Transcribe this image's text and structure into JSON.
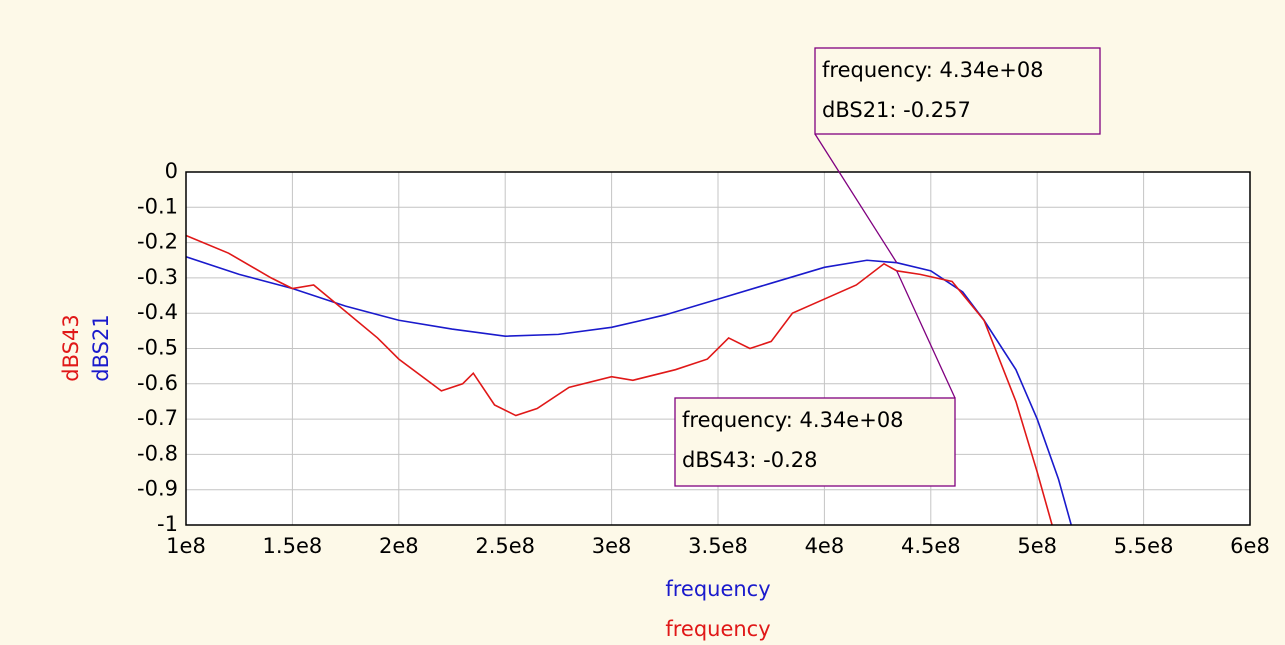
{
  "chart_data": {
    "type": "line",
    "xlim": [
      100000000,
      600000000
    ],
    "xticks": [
      {
        "value": 100000000,
        "label": "1e8"
      },
      {
        "value": 150000000,
        "label": "1.5e8"
      },
      {
        "value": 200000000,
        "label": "2e8"
      },
      {
        "value": 250000000,
        "label": "2.5e8"
      },
      {
        "value": 300000000,
        "label": "3e8"
      },
      {
        "value": 350000000,
        "label": "3.5e8"
      },
      {
        "value": 400000000,
        "label": "4e8"
      },
      {
        "value": 450000000,
        "label": "4.5e8"
      },
      {
        "value": 500000000,
        "label": "5e8"
      },
      {
        "value": 550000000,
        "label": "5.5e8"
      },
      {
        "value": 600000000,
        "label": "6e8"
      }
    ],
    "ylim": [
      -1,
      0
    ],
    "yticks": [
      0,
      -0.1,
      -0.2,
      -0.3,
      -0.4,
      -0.5,
      -0.6,
      -0.7,
      -0.8,
      -0.9,
      -1
    ],
    "grid": true,
    "series": [
      {
        "name": "dBS21",
        "color": "#1a1acc",
        "x_label": "frequency",
        "x": [
          100000000,
          125000000,
          150000000,
          175000000,
          200000000,
          225000000,
          250000000,
          275000000,
          300000000,
          325000000,
          350000000,
          375000000,
          400000000,
          420000000,
          434000000,
          450000000,
          465000000,
          475000000,
          490000000,
          500000000,
          510000000,
          516000000
        ],
        "values": [
          -0.24,
          -0.29,
          -0.33,
          -0.38,
          -0.42,
          -0.445,
          -0.465,
          -0.46,
          -0.44,
          -0.405,
          -0.36,
          -0.315,
          -0.27,
          -0.25,
          -0.257,
          -0.28,
          -0.34,
          -0.42,
          -0.56,
          -0.7,
          -0.87,
          -1.0
        ]
      },
      {
        "name": "dBS43",
        "color": "#e01818",
        "x_label": "frequency",
        "x": [
          100000000,
          120000000,
          140000000,
          150000000,
          160000000,
          170000000,
          190000000,
          200000000,
          220000000,
          230000000,
          235000000,
          245000000,
          255000000,
          265000000,
          280000000,
          300000000,
          310000000,
          330000000,
          345000000,
          355000000,
          365000000,
          375000000,
          385000000,
          400000000,
          415000000,
          428000000,
          434000000,
          445000000,
          460000000,
          475000000,
          490000000,
          500000000,
          507000000
        ],
        "values": [
          -0.18,
          -0.23,
          -0.3,
          -0.33,
          -0.32,
          -0.37,
          -0.47,
          -0.53,
          -0.62,
          -0.6,
          -0.57,
          -0.66,
          -0.69,
          -0.67,
          -0.61,
          -0.58,
          -0.59,
          -0.56,
          -0.53,
          -0.47,
          -0.5,
          -0.48,
          -0.4,
          -0.36,
          -0.32,
          -0.26,
          -0.28,
          -0.29,
          -0.31,
          -0.42,
          -0.65,
          -0.85,
          -1.0
        ]
      }
    ],
    "markers": [
      {
        "x": 434000000,
        "y": -0.257,
        "lines": [
          "frequency: 4.34e+08",
          "dBS21: -0.257"
        ]
      },
      {
        "x": 434000000,
        "y": -0.28,
        "lines": [
          "frequency: 4.34e+08",
          "dBS43: -0.28"
        ]
      }
    ]
  }
}
